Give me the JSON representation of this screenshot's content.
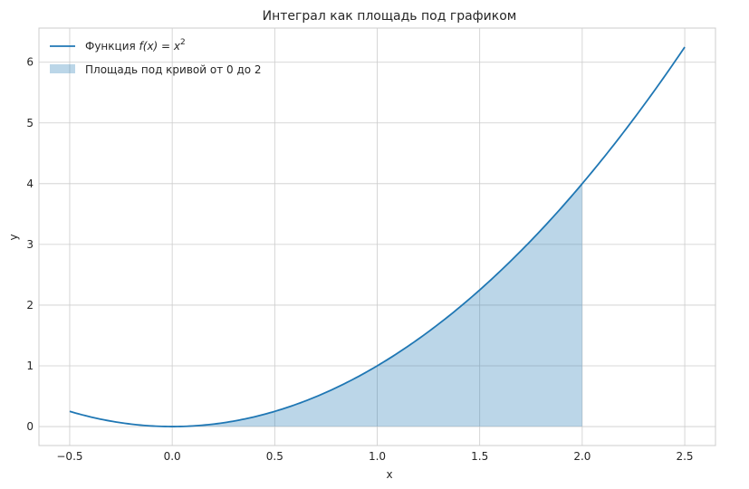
{
  "chart_data": {
    "type": "line",
    "title": "Интеграл как площадь под графиком",
    "xlabel": "x",
    "ylabel": "y",
    "xlim": [
      -0.65,
      2.65
    ],
    "ylim": [
      -0.3125,
      6.5625
    ],
    "xticks": [
      -0.5,
      0.0,
      0.5,
      1.0,
      1.5,
      2.0,
      2.5
    ],
    "xtick_labels": [
      "−0.5",
      "0.0",
      "0.5",
      "1.0",
      "1.5",
      "2.0",
      "2.5"
    ],
    "yticks": [
      0,
      1,
      2,
      3,
      4,
      5,
      6
    ],
    "ytick_labels": [
      "0",
      "1",
      "2",
      "3",
      "4",
      "5",
      "6"
    ],
    "grid": true,
    "series": [
      {
        "name": "Функция f(x) = x²",
        "function": "x^2",
        "x_range": [
          -0.5,
          2.5
        ],
        "color": "#1f77b4"
      }
    ],
    "fill": {
      "name": "Площадь под кривой от 0 до 2",
      "function": "x^2",
      "x_range": [
        0,
        2
      ],
      "color": "#1f77b4",
      "opacity": 0.3
    },
    "legend": {
      "position": "top-left",
      "line_label_prefix": "Функция ",
      "line_label_math": "f(x) = x",
      "line_label_sup": "2",
      "fill_label": "Площадь под кривой от 0 до 2"
    }
  }
}
